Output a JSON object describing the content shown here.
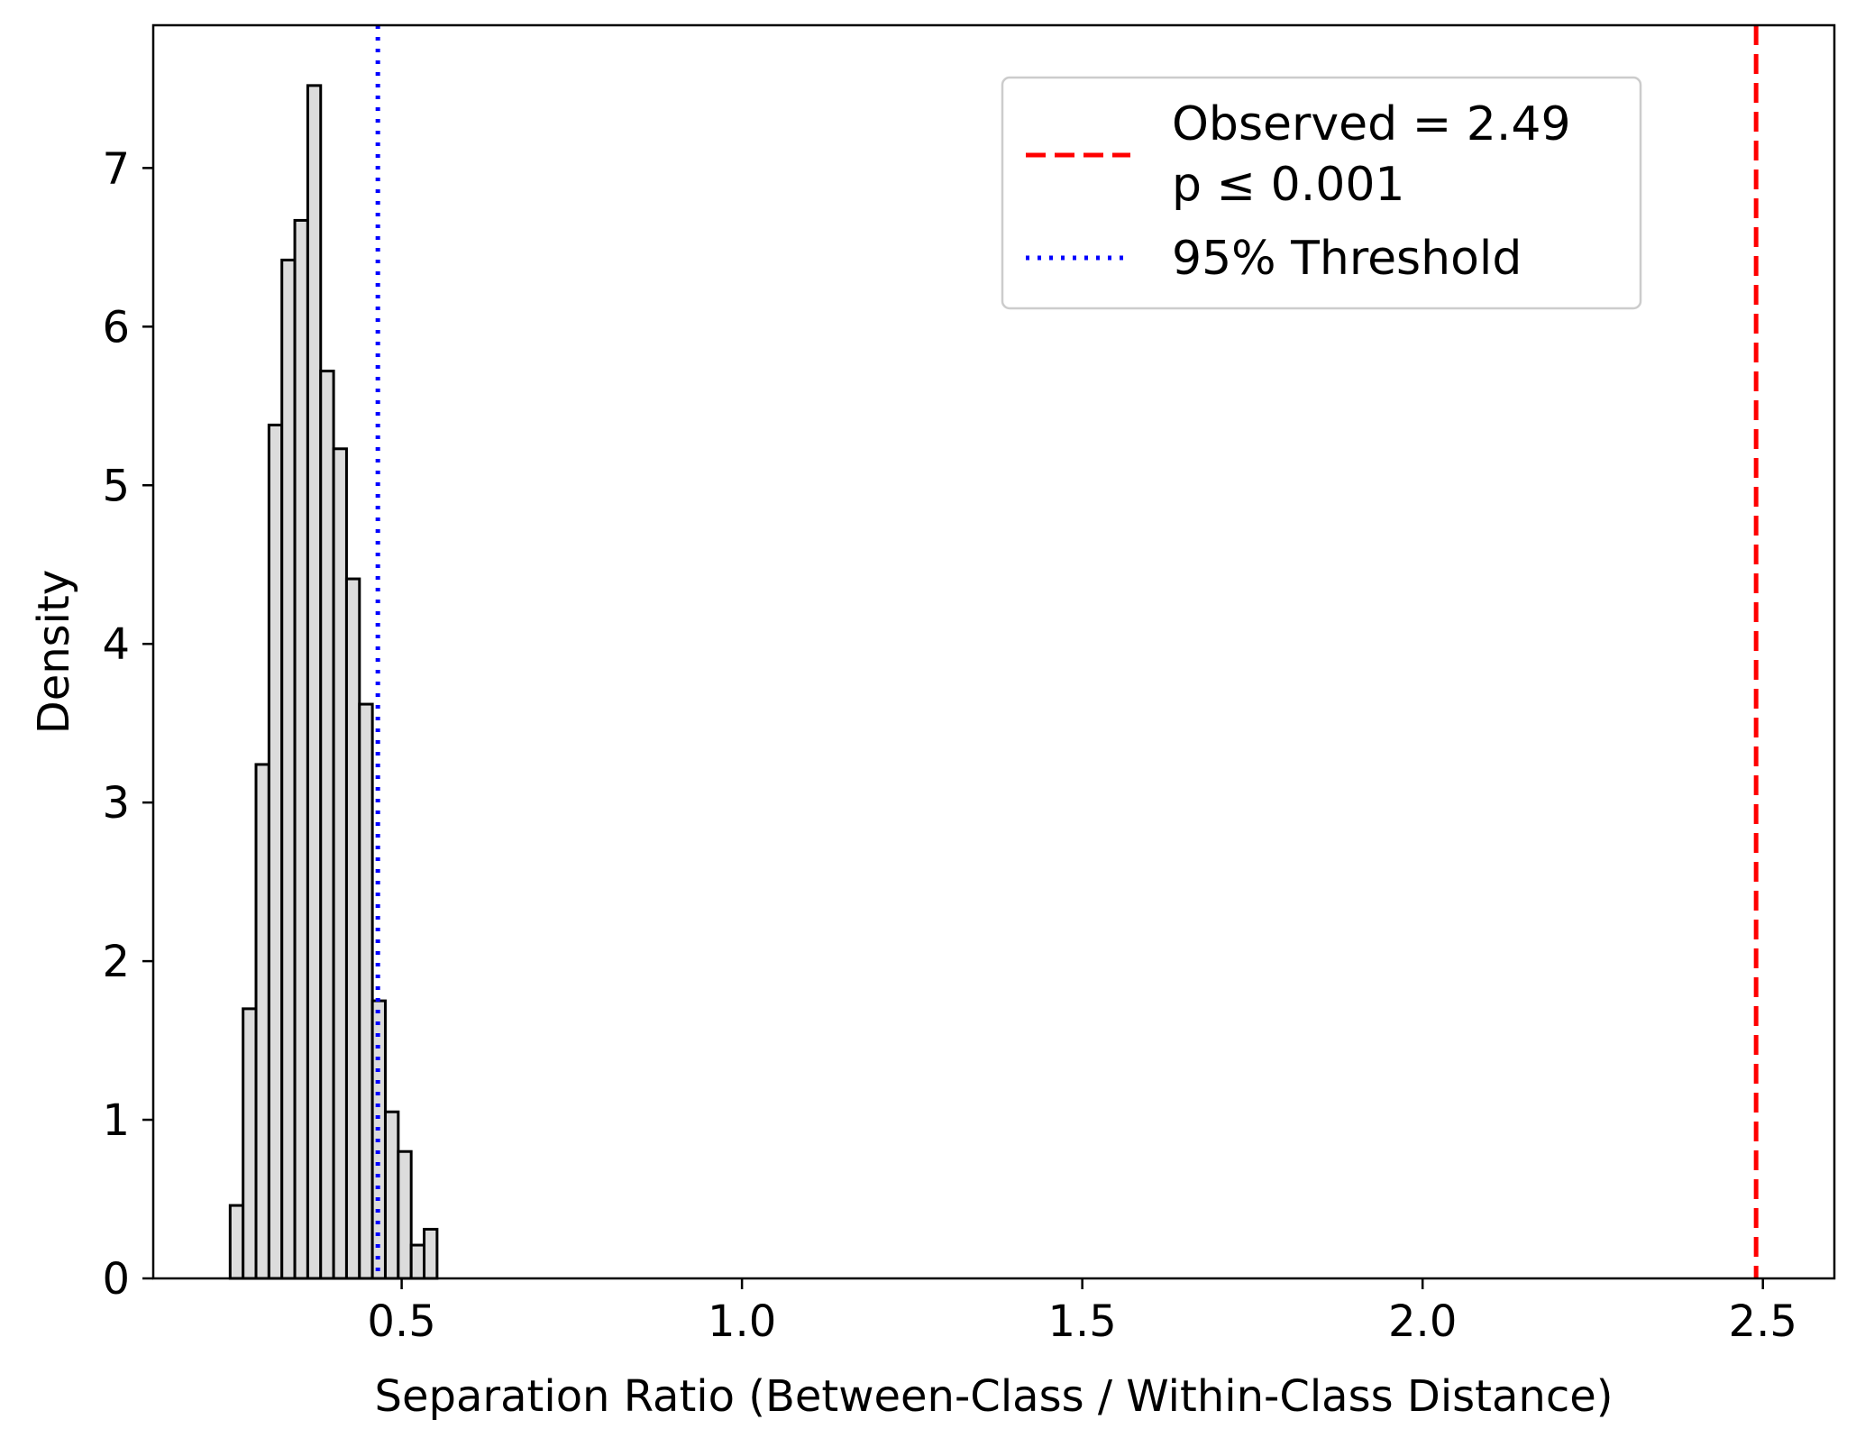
{
  "chart_data": {
    "type": "histogram",
    "xlabel": "Separation Ratio (Between-Class / Within-Class Distance)",
    "ylabel": "Density",
    "xlim": [
      0.135,
      2.605
    ],
    "ylim": [
      0,
      7.9
    ],
    "xticks": [
      0.5,
      1.0,
      1.5,
      2.0,
      2.5
    ],
    "xtick_labels": [
      "0.5",
      "1.0",
      "1.5",
      "2.0",
      "2.5"
    ],
    "yticks": [
      0,
      1,
      2,
      3,
      4,
      5,
      6,
      7
    ],
    "ytick_labels": [
      "0",
      "1",
      "2",
      "3",
      "4",
      "5",
      "6",
      "7"
    ],
    "bins": [
      {
        "x0": 0.248,
        "x1": 0.267,
        "density": 0.46
      },
      {
        "x0": 0.267,
        "x1": 0.286,
        "density": 1.7
      },
      {
        "x0": 0.286,
        "x1": 0.305,
        "density": 3.24
      },
      {
        "x0": 0.305,
        "x1": 0.324,
        "density": 5.38
      },
      {
        "x0": 0.324,
        "x1": 0.343,
        "density": 6.42
      },
      {
        "x0": 0.343,
        "x1": 0.362,
        "density": 6.67
      },
      {
        "x0": 0.362,
        "x1": 0.381,
        "density": 7.52
      },
      {
        "x0": 0.381,
        "x1": 0.4,
        "density": 5.72
      },
      {
        "x0": 0.4,
        "x1": 0.419,
        "density": 5.23
      },
      {
        "x0": 0.419,
        "x1": 0.438,
        "density": 4.41
      },
      {
        "x0": 0.438,
        "x1": 0.457,
        "density": 3.62
      },
      {
        "x0": 0.457,
        "x1": 0.476,
        "density": 1.75
      },
      {
        "x0": 0.476,
        "x1": 0.495,
        "density": 1.05
      },
      {
        "x0": 0.495,
        "x1": 0.514,
        "density": 0.8
      },
      {
        "x0": 0.514,
        "x1": 0.533,
        "density": 0.21
      },
      {
        "x0": 0.533,
        "x1": 0.552,
        "density": 0.31
      }
    ],
    "bar_fill": "#dcdcdc",
    "bar_edge": "#000000",
    "lines": [
      {
        "name": "observed",
        "x": 2.49,
        "color": "#ff0000",
        "style": "dashed"
      },
      {
        "name": "threshold",
        "x": 0.465,
        "color": "#0000ff",
        "style": "dotted"
      }
    ],
    "legend": {
      "position": "upper right",
      "entries": [
        {
          "line": "observed",
          "label": "Observed = 2.49",
          "label_line2": "p ≤ 0.001"
        },
        {
          "line": "threshold",
          "label": "95% Threshold"
        }
      ]
    },
    "grid": false
  }
}
